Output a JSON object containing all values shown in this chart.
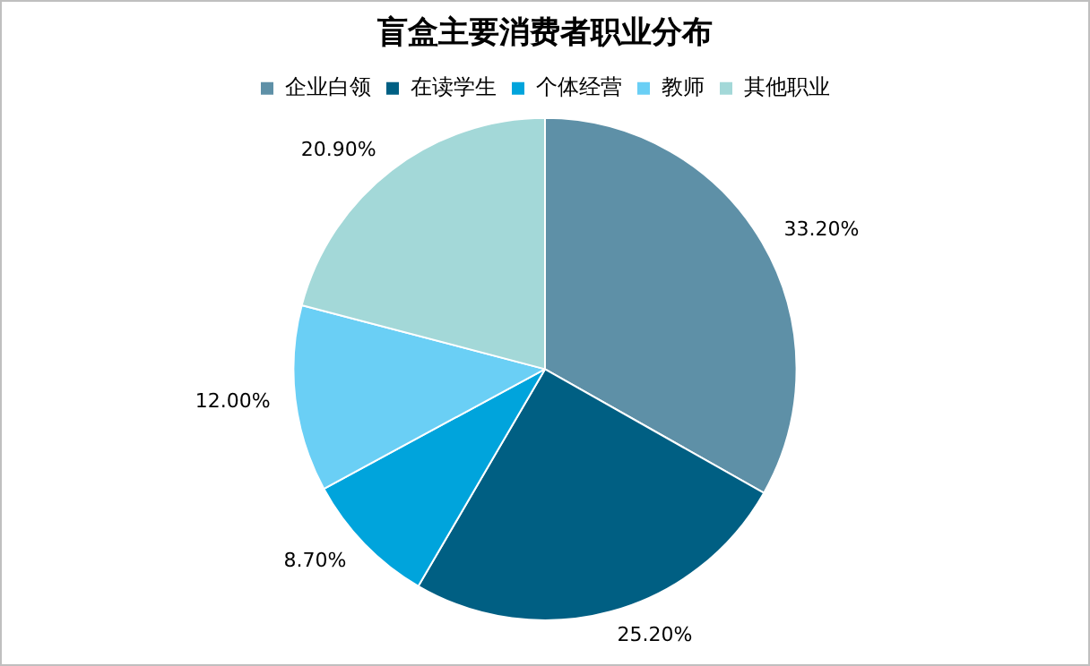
{
  "chart_data": {
    "type": "pie",
    "title": "盲盒主要消费者职业分布",
    "categories": [
      "企业白领",
      "在读学生",
      "个体经营",
      "教师",
      "其他职业"
    ],
    "values": [
      33.2,
      25.2,
      8.7,
      12.0,
      20.9
    ],
    "value_labels": [
      "33.20%",
      "25.20%",
      "8.70%",
      "12.00%",
      "20.90%"
    ],
    "colors": [
      "#5e90a7",
      "#005f83",
      "#00a4dc",
      "#6acff5",
      "#a3d8d8"
    ],
    "legend": "top"
  }
}
